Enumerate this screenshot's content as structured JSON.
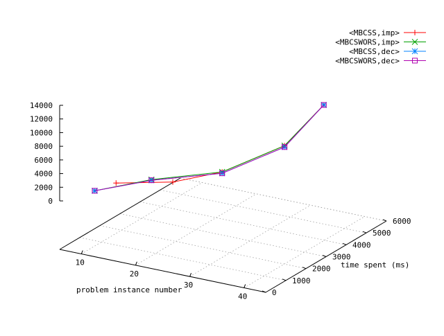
{
  "chart_data": {
    "type": "line",
    "dimensions": "3d",
    "title": "",
    "x_axis": {
      "label": "problem instance number",
      "ticks": [
        10,
        20,
        30,
        40
      ],
      "range": [
        6,
        44
      ]
    },
    "y_axis": {
      "label": "time spent (ms)",
      "ticks": [
        0,
        1000,
        2000,
        3000,
        4000,
        5000,
        6000
      ],
      "range": [
        0,
        6000
      ]
    },
    "z_axis": {
      "label": "",
      "ticks": [
        0,
        2000,
        4000,
        6000,
        8000,
        10000,
        12000,
        14000
      ],
      "range": [
        0,
        14000
      ]
    },
    "grid": true,
    "legend_position": "top-right",
    "series": [
      {
        "name": "<MBCSS,imp>",
        "color": "#ff0000",
        "marker": "plus",
        "points": [
          [
            9,
            600,
            2600
          ],
          [
            16,
            1300,
            2800
          ],
          [
            21,
            2700,
            4200
          ],
          [
            27,
            4700,
            7900
          ],
          [
            31,
            5800,
            13800
          ]
        ]
      },
      {
        "name": "<MBCSWORS,imp>",
        "color": "#00a000",
        "marker": "cross",
        "points": [
          [
            6,
            600,
            1400
          ],
          [
            13,
            1300,
            3100
          ],
          [
            21,
            2700,
            4200
          ],
          [
            27,
            4700,
            7900
          ],
          [
            31,
            5800,
            13800
          ]
        ]
      },
      {
        "name": "<MBCSS,dec>",
        "color": "#0080ff",
        "marker": "star",
        "points": [
          [
            6,
            600,
            1400
          ],
          [
            13,
            1300,
            3000
          ],
          [
            21,
            2700,
            4000
          ],
          [
            27,
            4700,
            7700
          ],
          [
            31,
            5800,
            13800
          ]
        ]
      },
      {
        "name": "<MBCSWORS,dec>",
        "color": "#b000b0",
        "marker": "box",
        "points": [
          [
            6,
            600,
            1400
          ],
          [
            13,
            1300,
            3000
          ],
          [
            21,
            2700,
            4000
          ],
          [
            27,
            4700,
            7700
          ],
          [
            31,
            5800,
            13800
          ]
        ]
      }
    ]
  }
}
